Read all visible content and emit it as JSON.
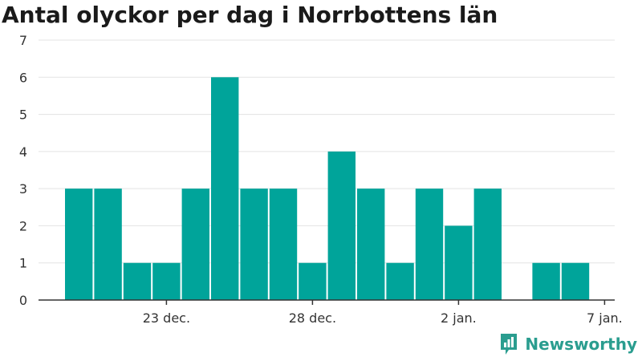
{
  "chart_data": {
    "type": "bar",
    "title": "Antal olyckor per dag i Norrbottens län",
    "xlabel": "",
    "ylabel": "",
    "x": [
      "2023-12-20",
      "2023-12-21",
      "2023-12-22",
      "2023-12-23",
      "2023-12-24",
      "2023-12-25",
      "2023-12-26",
      "2023-12-27",
      "2023-12-28",
      "2023-12-29",
      "2023-12-30",
      "2023-12-31",
      "2024-01-01",
      "2024-01-02",
      "2024-01-03",
      "2024-01-04",
      "2024-01-05",
      "2024-01-06",
      "2024-01-07"
    ],
    "values": [
      3,
      3,
      1,
      1,
      3,
      6,
      3,
      3,
      1,
      4,
      3,
      1,
      3,
      2,
      3,
      0,
      1,
      1,
      0
    ],
    "xtick_labels": [
      "23 dec.",
      "28 dec.",
      "2 jan.",
      "7 jan."
    ],
    "xtick_dates": [
      "2023-12-23",
      "2023-12-28",
      "2024-01-02",
      "2024-01-07"
    ],
    "yticks": [
      0,
      1,
      2,
      3,
      4,
      5,
      6,
      7
    ],
    "ylim": [
      0,
      7
    ],
    "grid": true,
    "bar_color": "#00a49a"
  },
  "brand": {
    "name": "Newsworthy",
    "color": "#2a9d8f"
  }
}
